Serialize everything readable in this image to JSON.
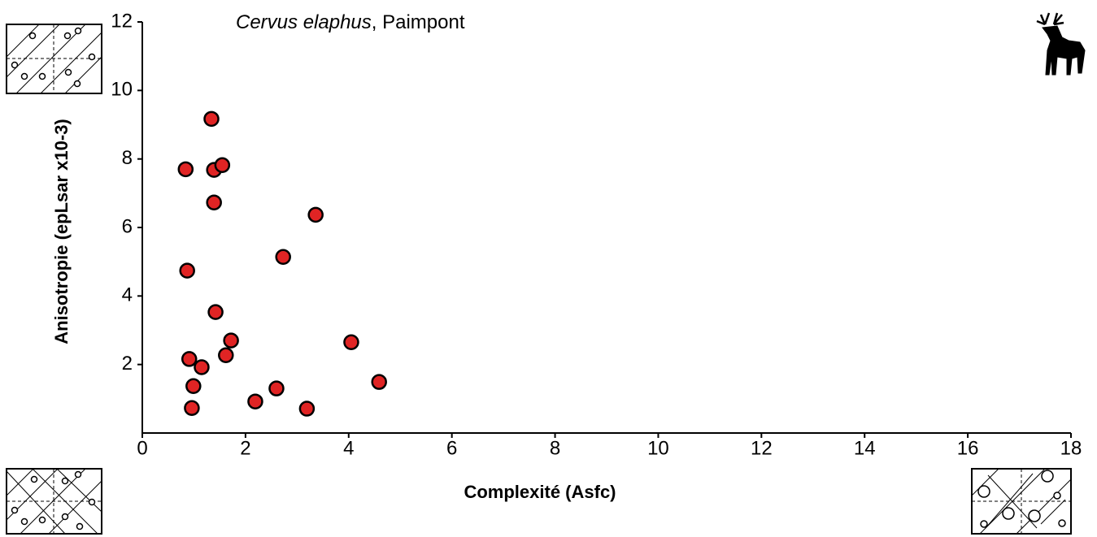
{
  "chart_data": {
    "type": "scatter",
    "title": {
      "species": "Cervus elaphus",
      "place": ", Paimpont"
    },
    "xlabel": "Complexité (Asfc)",
    "ylabel": "Anisotropie (epLsar x10-3)",
    "xlim": [
      0,
      18
    ],
    "ylim": [
      0,
      12
    ],
    "xticks": [
      0,
      2,
      4,
      6,
      8,
      10,
      12,
      14,
      16,
      18
    ],
    "yticks": [
      2,
      4,
      6,
      8,
      10,
      12
    ],
    "color": "#e02424",
    "x": [
      0.84,
      1.34,
      1.39,
      1.55,
      1.39,
      3.36,
      0.87,
      2.73,
      1.42,
      1.72,
      4.05,
      0.91,
      1.62,
      1.15,
      0.99,
      4.59,
      2.6,
      2.19,
      0.96,
      3.19
    ],
    "y": [
      7.7,
      9.17,
      7.68,
      7.82,
      6.73,
      6.37,
      4.74,
      5.14,
      3.53,
      2.7,
      2.65,
      2.16,
      2.27,
      1.92,
      1.37,
      1.49,
      1.3,
      0.92,
      0.73,
      0.71
    ]
  }
}
